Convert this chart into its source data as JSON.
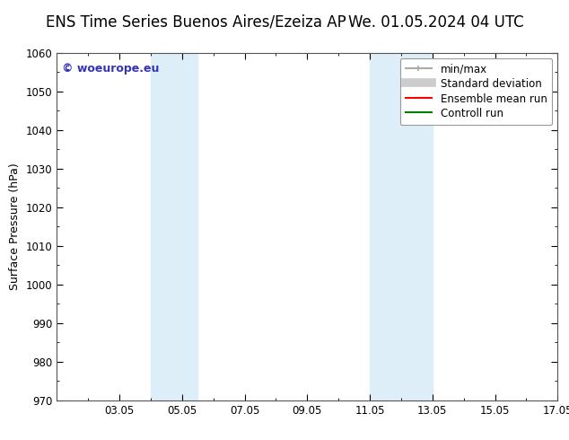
{
  "title_left": "ENS Time Series Buenos Aires/Ezeiza AP",
  "title_right": "We. 01.05.2024 04 UTC",
  "ylabel": "Surface Pressure (hPa)",
  "ylim": [
    970,
    1060
  ],
  "yticks": [
    970,
    980,
    990,
    1000,
    1010,
    1020,
    1030,
    1040,
    1050,
    1060
  ],
  "xlim": [
    1,
    17
  ],
  "xtick_labels": [
    "03.05",
    "05.05",
    "07.05",
    "09.05",
    "11.05",
    "13.05",
    "15.05",
    "17.05"
  ],
  "xtick_positions": [
    3,
    5,
    7,
    9,
    11,
    13,
    15,
    17
  ],
  "shaded_regions": [
    {
      "x_start": 4.0,
      "x_end": 5.5
    },
    {
      "x_start": 11.0,
      "x_end": 13.0
    }
  ],
  "shaded_color": "#deeef8",
  "background_color": "#ffffff",
  "watermark_text": "© woeurope.eu",
  "watermark_color": "#3333bb",
  "legend_entries": [
    {
      "label": "min/max",
      "color": "#aaaaaa",
      "lw": 1.5
    },
    {
      "label": "Standard deviation",
      "color": "#cccccc",
      "lw": 7
    },
    {
      "label": "Ensemble mean run",
      "color": "#ff0000",
      "lw": 1.5
    },
    {
      "label": "Controll run",
      "color": "#008000",
      "lw": 1.5
    }
  ],
  "title_fontsize": 12,
  "label_fontsize": 9,
  "tick_fontsize": 8.5,
  "legend_fontsize": 8.5,
  "fig_width": 6.34,
  "fig_height": 4.9,
  "fig_dpi": 100
}
